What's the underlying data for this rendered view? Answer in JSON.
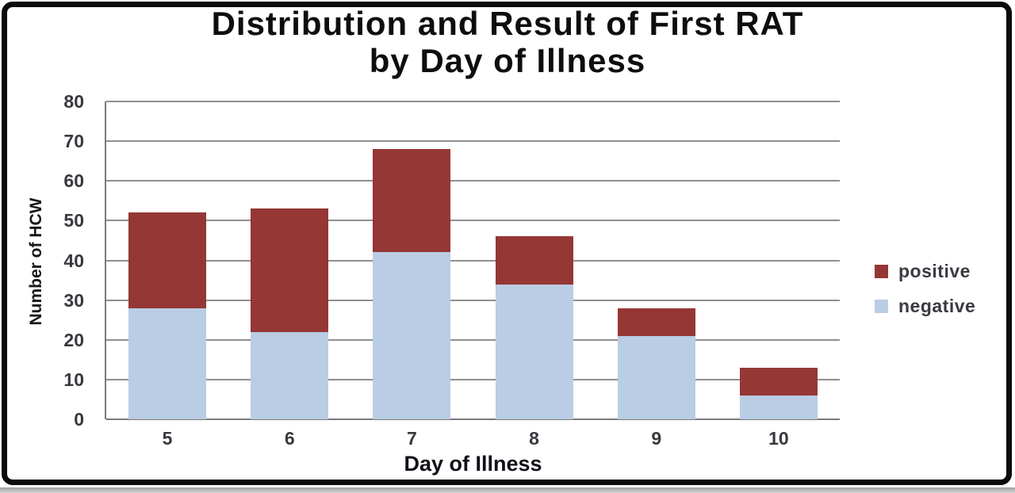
{
  "title": {
    "line1": "Distribution and Result of First RAT",
    "line2": "by Day of Illness"
  },
  "chart_data": {
    "type": "bar",
    "stacked": true,
    "title": "Distribution and Result of First RAT by Day of Illness",
    "categories": [
      "5",
      "6",
      "7",
      "8",
      "9",
      "10"
    ],
    "series": [
      {
        "name": "positive",
        "color": "#953735",
        "values": [
          24,
          31,
          26,
          12,
          7,
          7
        ]
      },
      {
        "name": "negative",
        "color": "#B9CDE4",
        "values": [
          28,
          22,
          42,
          34,
          21,
          6
        ]
      }
    ],
    "stack_bottom_to_top": [
      "negative",
      "positive"
    ],
    "totals": [
      52,
      53,
      68,
      46,
      28,
      13
    ],
    "xlabel": "Day of Illness",
    "ylabel": "Number of HCW",
    "ylim": [
      0,
      80
    ],
    "ytick_step": 10,
    "ytick_labels": [
      "0",
      "10",
      "20",
      "30",
      "40",
      "50",
      "60",
      "70",
      "80"
    ],
    "grid": "horizontal",
    "legend_position": "right",
    "legend_entries": [
      "positive",
      "negative"
    ]
  },
  "colors": {
    "gridline": "#8f8f8f",
    "axis_line": "#7a7a7a",
    "tick_text": "#38383f",
    "frame": "#0b0b0b",
    "background": "#ffffff"
  }
}
